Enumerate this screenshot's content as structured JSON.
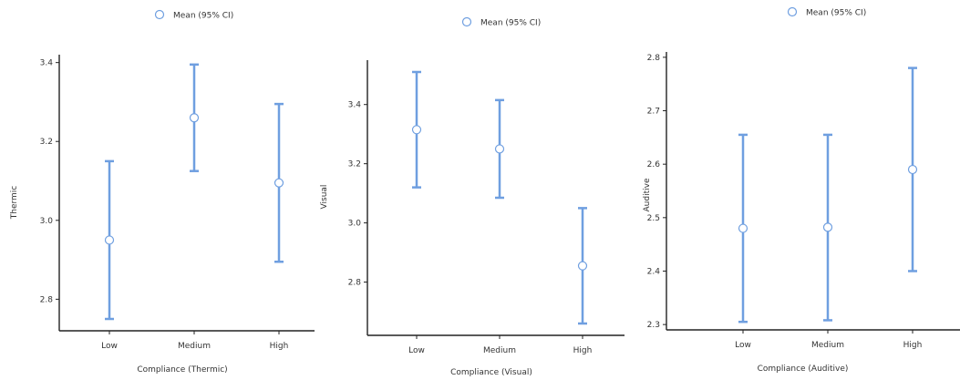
{
  "style": {
    "series_color": "#6f9fe0",
    "axis_color": "#222222"
  },
  "chart_data": [
    {
      "type": "errorbar",
      "legend": "Mean (95% CI)",
      "categories": [
        "Low",
        "Medium",
        "High"
      ],
      "means": [
        2.95,
        3.26,
        3.095
      ],
      "lower": [
        2.75,
        3.125,
        2.895
      ],
      "upper": [
        3.15,
        3.395,
        3.295
      ],
      "ylabel": "Thermic",
      "xlabel": "Compliance (Thermic)",
      "yticks": [
        2.8,
        3.0,
        3.2,
        3.4
      ],
      "ylim": [
        2.72,
        3.42
      ],
      "grid": false
    },
    {
      "type": "errorbar",
      "legend": "Mean (95% CI)",
      "categories": [
        "Low",
        "Medium",
        "High"
      ],
      "means": [
        3.315,
        3.25,
        2.855
      ],
      "lower": [
        3.12,
        3.085,
        2.66
      ],
      "upper": [
        3.51,
        3.415,
        3.05
      ],
      "ylabel": "Visual",
      "xlabel": "Compliance (Visual)",
      "yticks": [
        2.8,
        3.0,
        3.2,
        3.4
      ],
      "ylim": [
        2.62,
        3.55
      ],
      "grid": false
    },
    {
      "type": "errorbar",
      "legend": "Mean (95% CI)",
      "categories": [
        "Low",
        "Medium",
        "High"
      ],
      "means": [
        2.48,
        2.482,
        2.59
      ],
      "lower": [
        2.305,
        2.308,
        2.4
      ],
      "upper": [
        2.655,
        2.655,
        2.78
      ],
      "ylabel": "Auditive",
      "xlabel": "Compliance (Auditive)",
      "yticks": [
        2.3,
        2.4,
        2.5,
        2.6,
        2.7,
        2.8
      ],
      "ylim": [
        2.29,
        2.81
      ],
      "grid": false
    }
  ]
}
